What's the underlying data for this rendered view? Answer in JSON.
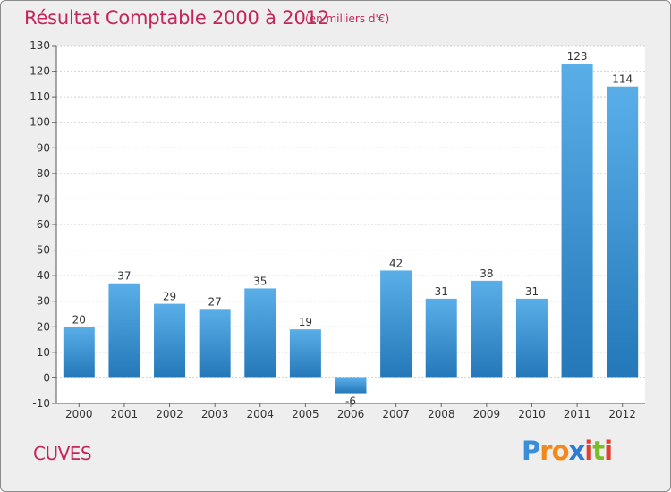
{
  "header": {
    "title": "Résultat Comptable 2000 à 2012",
    "subtitle": "(en milliers d'€)"
  },
  "footer": {
    "commune": "CUVES",
    "logo": {
      "letters": [
        "P",
        "r",
        "o",
        "x",
        "i",
        "t",
        "i"
      ],
      "colors": [
        "#3a8ed8",
        "#f08a1e",
        "#f08a1e",
        "#2e7bd6",
        "#e53d2e",
        "#7cbb2a",
        "#e53d2e"
      ]
    }
  },
  "chart_data": {
    "type": "bar",
    "title": "Résultat Comptable 2000 à 2012",
    "subtitle": "(en milliers d'€)",
    "categories": [
      "2000",
      "2001",
      "2002",
      "2003",
      "2004",
      "2005",
      "2006",
      "2007",
      "2008",
      "2009",
      "2010",
      "2011",
      "2012"
    ],
    "values": [
      20,
      37,
      29,
      27,
      35,
      19,
      -6,
      42,
      31,
      38,
      31,
      123,
      114
    ],
    "ylim": [
      -10,
      130
    ],
    "yticks": [
      -10,
      0,
      10,
      20,
      30,
      40,
      50,
      60,
      70,
      80,
      90,
      100,
      110,
      120,
      130
    ],
    "grid": true,
    "colors": {
      "bar_top": "#5aaee8",
      "bar_bottom": "#2478b8",
      "grid": "#cfcfcf",
      "plot_bg": "#ffffff"
    }
  }
}
